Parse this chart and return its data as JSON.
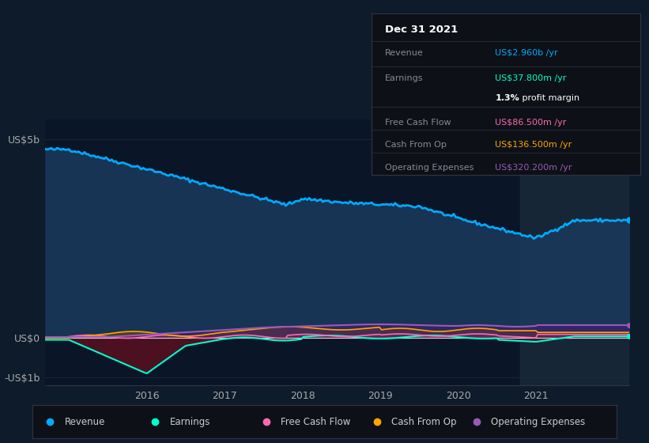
{
  "bg_color": "#0d1b2a",
  "plot_bg_color": "#0a1628",
  "highlight_bg": "#1a2a3a",
  "ylim": [
    -1200000000.0,
    5500000000.0
  ],
  "xlim": [
    2014.7,
    2022.2
  ],
  "yticks": [
    -1000000000.0,
    0,
    5000000000.0
  ],
  "ytick_labels": [
    "-US$1b",
    "US$0",
    "US$5b"
  ],
  "xticks": [
    2016,
    2017,
    2018,
    2019,
    2020,
    2021
  ],
  "highlight_x_start": 2020.8,
  "highlight_x_end": 2022.2,
  "legend_items": [
    {
      "label": "Revenue",
      "color": "#00aaff"
    },
    {
      "label": "Earnings",
      "color": "#00ffcc"
    },
    {
      "label": "Free Cash Flow",
      "color": "#ff69b4"
    },
    {
      "label": "Cash From Op",
      "color": "#ffa500"
    },
    {
      "label": "Operating Expenses",
      "color": "#9b59b6"
    }
  ],
  "revenue_color": "#00aaff",
  "earnings_color": "#00ffcc",
  "free_cf_color": "#ff69b4",
  "cash_from_op_color": "#ffa500",
  "op_exp_color": "#9b59b6",
  "info_title": "Dec 31 2021",
  "info_rows": [
    {
      "label": "Revenue",
      "value": "US$2.960b /yr",
      "value_color": "#00aaff"
    },
    {
      "label": "Earnings",
      "value": "US$37.800m /yr",
      "value_color": "#00ffcc"
    },
    {
      "label": "",
      "value": "1.3% profit margin",
      "value_color": "#ffffff"
    },
    {
      "label": "Free Cash Flow",
      "value": "US$86.500m /yr",
      "value_color": "#ff69b4"
    },
    {
      "label": "Cash From Op",
      "value": "US$136.500m /yr",
      "value_color": "#ffa500"
    },
    {
      "label": "Operating Expenses",
      "value": "US$320.200m /yr",
      "value_color": "#9b59b6"
    }
  ]
}
